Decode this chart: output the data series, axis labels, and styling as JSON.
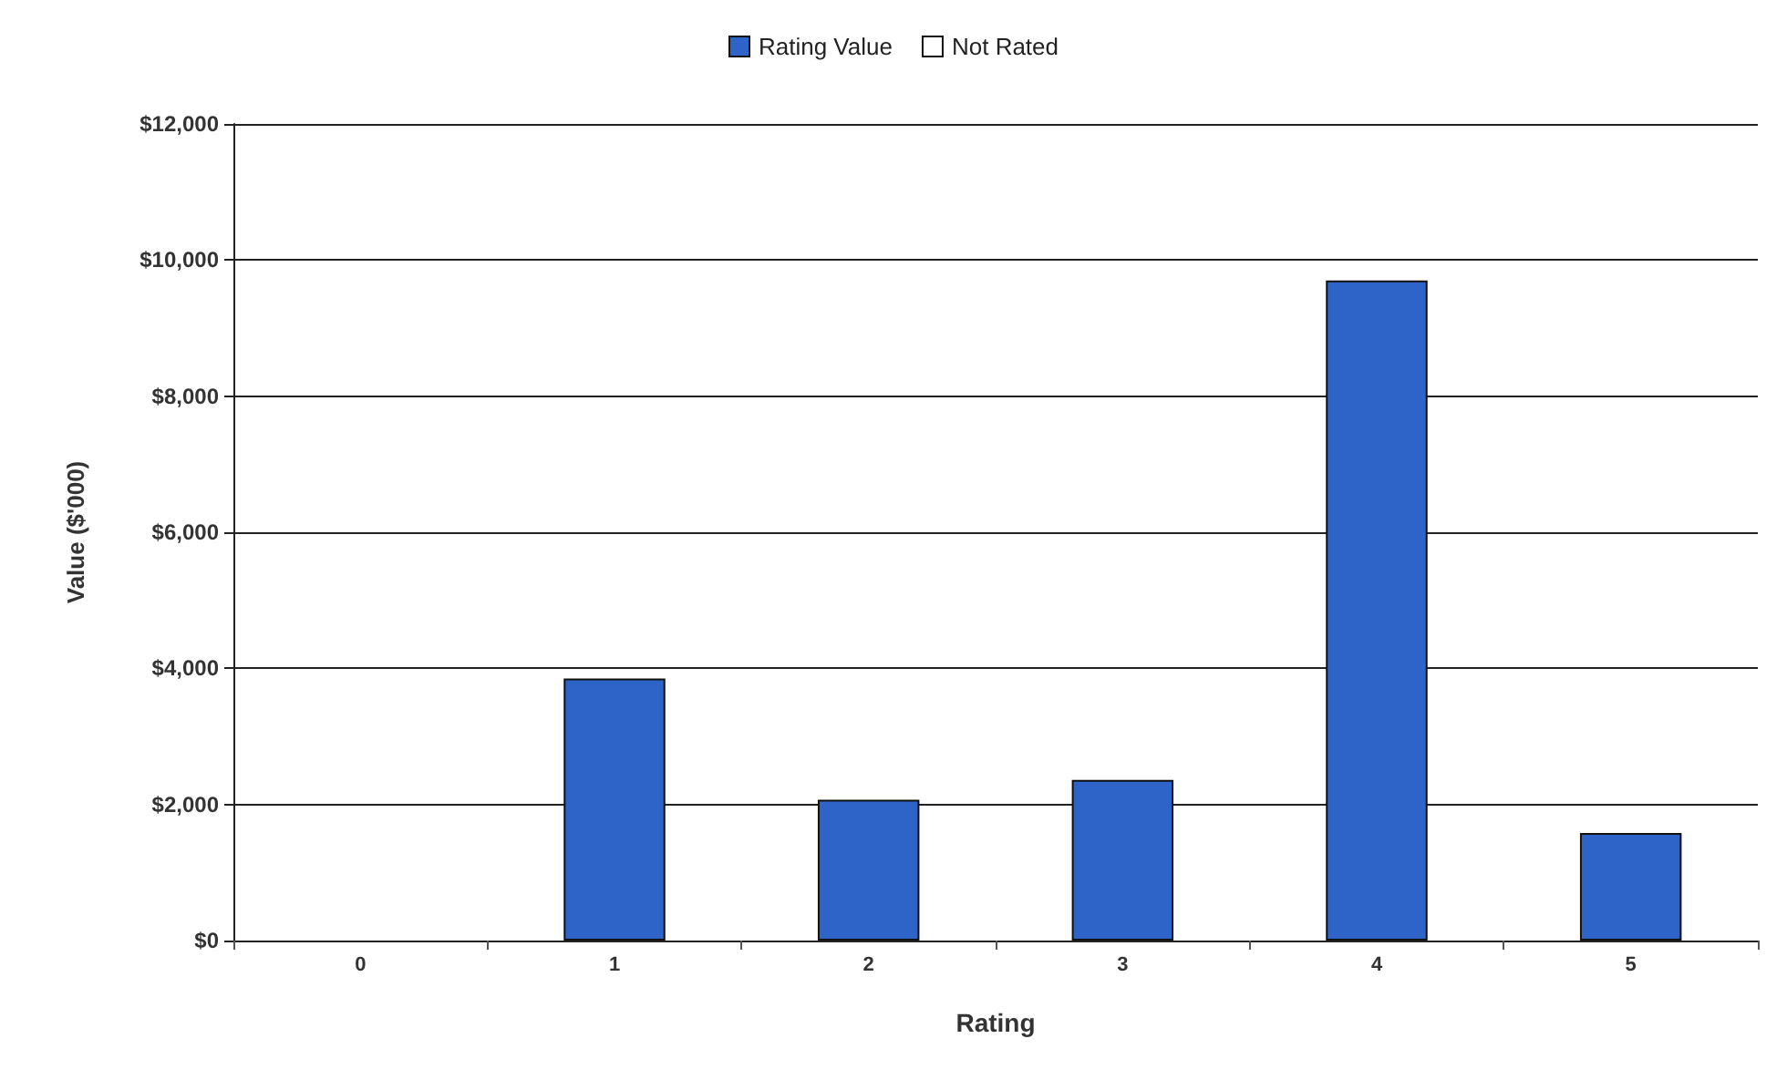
{
  "chart_data": {
    "type": "bar",
    "xlabel": "Rating",
    "ylabel": "Value ($'000)",
    "categories": [
      "0",
      "1",
      "2",
      "3",
      "4",
      "5"
    ],
    "series": [
      {
        "name": "Rating Value",
        "color": "#2e64c8",
        "values": [
          null,
          3850,
          2070,
          2360,
          9700,
          1580
        ]
      },
      {
        "name": "Not Rated",
        "color": "#ffffff",
        "values": [
          null,
          null,
          null,
          null,
          null,
          null
        ]
      }
    ],
    "stacked": true,
    "ylim": [
      0,
      12000
    ],
    "yticks": [
      {
        "value": 0,
        "label": "$0"
      },
      {
        "value": 2000,
        "label": "$2,000"
      },
      {
        "value": 4000,
        "label": "$4,000"
      },
      {
        "value": 6000,
        "label": "$6,000"
      },
      {
        "value": 8000,
        "label": "$8,000"
      },
      {
        "value": 10000,
        "label": "$10,000"
      },
      {
        "value": 12000,
        "label": "$12,000"
      }
    ],
    "grid": "y",
    "legend": "top"
  }
}
